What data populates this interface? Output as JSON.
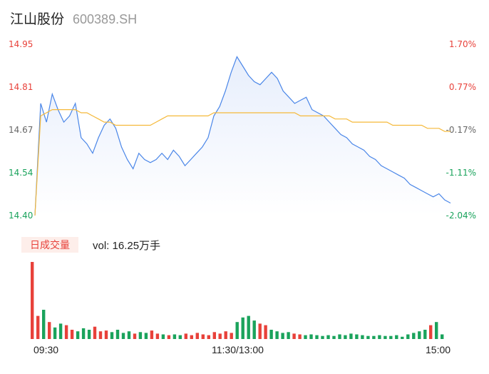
{
  "header": {
    "name": "江山股份",
    "code": "600389.SH"
  },
  "volume": {
    "badge": "日成交量",
    "label": "vol: 16.25万手"
  },
  "colors": {
    "price": "#4a86e8",
    "avg": "#f5b93a",
    "up": "#e8413a",
    "down": "#1aa35c",
    "area_top": "#e7eefc"
  },
  "chart_data": [
    {
      "type": "line",
      "title": "",
      "x_ticks": [
        "09:30",
        "11:30/13:00",
        "15:00"
      ],
      "ylim": [
        14.4,
        14.95
      ],
      "y_ticks_left": [
        "14.95",
        "14.81",
        "14.67",
        "14.54",
        "14.40"
      ],
      "y_ticks_right": [
        "1.70%",
        "0.77%",
        "-0.17%",
        "-1.11%",
        "-2.04%"
      ],
      "series": [
        {
          "values": [
            14.4,
            14.76,
            14.7,
            14.79,
            14.74,
            14.7,
            14.72,
            14.76,
            14.65,
            14.63,
            14.6,
            14.65,
            14.69,
            14.71,
            14.68,
            14.62,
            14.58,
            14.55,
            14.6,
            14.58,
            14.57,
            14.58,
            14.6,
            14.58,
            14.61,
            14.59,
            14.56,
            14.58,
            14.6,
            14.62,
            14.65,
            14.72,
            14.75,
            14.8,
            14.86,
            14.91,
            14.88,
            14.85,
            14.83,
            14.82,
            14.84,
            14.86,
            14.84,
            14.8,
            14.78,
            14.76,
            14.77,
            14.78,
            14.74,
            14.73,
            14.72,
            14.7,
            14.68,
            14.66,
            14.65,
            14.63,
            14.62,
            14.61,
            14.59,
            14.58,
            14.56,
            14.55,
            14.54,
            14.53,
            14.52,
            14.5,
            14.49,
            14.48,
            14.47,
            14.46,
            14.47,
            14.45,
            14.44
          ]
        },
        {
          "values": [
            14.4,
            14.72,
            14.73,
            14.74,
            14.74,
            14.74,
            14.74,
            14.74,
            14.73,
            14.73,
            14.72,
            14.71,
            14.7,
            14.7,
            14.69,
            14.69,
            14.69,
            14.69,
            14.69,
            14.69,
            14.69,
            14.7,
            14.71,
            14.72,
            14.72,
            14.72,
            14.72,
            14.72,
            14.72,
            14.72,
            14.72,
            14.73,
            14.73,
            14.73,
            14.73,
            14.73,
            14.73,
            14.73,
            14.73,
            14.73,
            14.73,
            14.73,
            14.73,
            14.73,
            14.73,
            14.73,
            14.72,
            14.72,
            14.72,
            14.72,
            14.72,
            14.72,
            14.71,
            14.71,
            14.71,
            14.7,
            14.7,
            14.7,
            14.7,
            14.7,
            14.7,
            14.7,
            14.69,
            14.69,
            14.69,
            14.69,
            14.69,
            14.69,
            14.68,
            14.68,
            14.68,
            14.67,
            14.67
          ]
        }
      ]
    },
    {
      "type": "bar",
      "title": "",
      "series": [
        {
          "values": [
            100,
            30,
            38,
            22,
            15,
            20,
            18,
            12,
            10,
            14,
            12,
            16,
            10,
            11,
            9,
            12,
            8,
            10,
            7,
            9,
            8,
            11,
            7,
            6,
            5,
            6,
            5,
            7,
            5,
            8,
            6,
            5,
            9,
            7,
            10,
            8,
            22,
            28,
            30,
            24,
            20,
            18,
            12,
            10,
            8,
            9,
            7,
            6,
            5,
            6,
            5,
            4,
            5,
            4,
            6,
            5,
            7,
            6,
            5,
            4,
            4,
            5,
            4,
            4,
            5,
            3,
            6,
            8,
            10,
            12,
            18,
            22,
            6
          ]
        }
      ]
    }
  ]
}
